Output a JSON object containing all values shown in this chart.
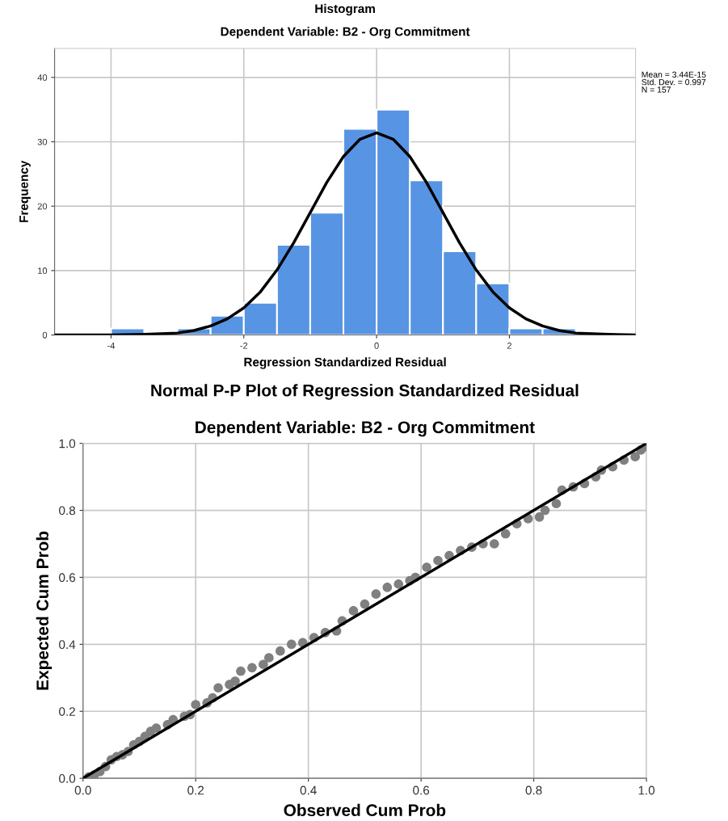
{
  "chart_data": [
    {
      "type": "histogram",
      "title": "Histogram",
      "subtitle": "Dependent Variable: B2 - Org Commitment",
      "xlabel": "Regression Standardized Residual",
      "ylabel": "Frequency",
      "bins": [
        -4,
        -3.5,
        -3,
        -2.5,
        -2,
        -1.5,
        -1,
        -0.5,
        0,
        0.5,
        1,
        1.5,
        2,
        2.5,
        3
      ],
      "values": [
        1,
        0,
        1,
        3,
        5,
        14,
        19,
        32,
        35,
        24,
        13,
        8,
        1,
        1
      ],
      "color": "#5795e4",
      "series": [
        {
          "type": "line",
          "color": "#000000",
          "x": [
            -4.85,
            -4.5,
            -4,
            -3.5,
            -3,
            -2.75,
            -2.5,
            -2.25,
            -2,
            -1.75,
            -1.5,
            -1.25,
            -1,
            -0.75,
            -0.5,
            -0.25,
            0,
            0.25,
            0.5,
            0.75,
            1,
            1.25,
            1.5,
            1.75,
            2,
            2.25,
            2.5,
            2.75,
            3,
            3.5,
            3.9
          ],
          "values": [
            0,
            0,
            0,
            0.1,
            0.3,
            0.7,
            1.4,
            2.5,
            4.2,
            6.7,
            10.1,
            14.3,
            19.0,
            23.7,
            27.7,
            30.4,
            31.4,
            30.4,
            27.7,
            23.7,
            19.0,
            14.3,
            10.1,
            6.7,
            4.2,
            2.5,
            1.4,
            0.7,
            0.3,
            0.1,
            0
          ]
        }
      ],
      "xlim": [
        -4.85,
        3.9
      ],
      "ylim": [
        0,
        44.5
      ],
      "xticks": [
        -4,
        -2,
        0,
        2
      ],
      "yticks": [
        0,
        10,
        20,
        30,
        40
      ],
      "grid": true,
      "annotations": [
        "Mean = 3.44E-15\nStd. Dev. = 0.997\nN = 157"
      ]
    },
    {
      "type": "scatter",
      "title": "Normal P-P Plot of Regression Standardized Residual",
      "subtitle": "Dependent Variable: B2 - Org Commitment",
      "xlabel": "Observed Cum Prob",
      "ylabel": "Expected Cum Prob",
      "series": [
        {
          "type": "scatter",
          "color": "#808080",
          "marker": "circle",
          "x": [
            0.01,
            0.02,
            0.03,
            0.04,
            0.05,
            0.06,
            0.07,
            0.08,
            0.09,
            0.1,
            0.11,
            0.12,
            0.13,
            0.15,
            0.16,
            0.18,
            0.19,
            0.2,
            0.22,
            0.23,
            0.24,
            0.26,
            0.27,
            0.28,
            0.3,
            0.32,
            0.33,
            0.35,
            0.37,
            0.39,
            0.41,
            0.43,
            0.45,
            0.46,
            0.48,
            0.5,
            0.52,
            0.54,
            0.56,
            0.58,
            0.59,
            0.61,
            0.63,
            0.65,
            0.67,
            0.69,
            0.71,
            0.73,
            0.75,
            0.77,
            0.79,
            0.81,
            0.82,
            0.84,
            0.85,
            0.87,
            0.89,
            0.91,
            0.92,
            0.94,
            0.96,
            0.98,
            0.99,
            1.0
          ],
          "values": [
            0.004,
            0.01,
            0.02,
            0.035,
            0.055,
            0.065,
            0.07,
            0.08,
            0.1,
            0.11,
            0.125,
            0.14,
            0.15,
            0.16,
            0.175,
            0.185,
            0.19,
            0.22,
            0.225,
            0.24,
            0.27,
            0.28,
            0.29,
            0.32,
            0.33,
            0.34,
            0.36,
            0.38,
            0.4,
            0.405,
            0.42,
            0.435,
            0.44,
            0.47,
            0.5,
            0.52,
            0.55,
            0.57,
            0.58,
            0.59,
            0.6,
            0.63,
            0.65,
            0.665,
            0.68,
            0.69,
            0.7,
            0.7,
            0.73,
            0.76,
            0.775,
            0.78,
            0.8,
            0.82,
            0.86,
            0.87,
            0.88,
            0.9,
            0.92,
            0.93,
            0.95,
            0.96,
            0.98,
            0.99
          ]
        },
        {
          "type": "line",
          "color": "#000000",
          "x": [
            0,
            1
          ],
          "values": [
            0,
            1
          ]
        }
      ],
      "xlim": [
        0,
        1
      ],
      "ylim": [
        0,
        1
      ],
      "xticks": [
        {
          "value": 0,
          "label": "0.0"
        },
        {
          "value": 0.2,
          "label": "0.2"
        },
        {
          "value": 0.4,
          "label": "0.4"
        },
        {
          "value": 0.6,
          "label": "0.6"
        },
        {
          "value": 0.8,
          "label": "0.8"
        },
        {
          "value": 1,
          "label": "1.0"
        }
      ],
      "yticks": [
        {
          "value": 0,
          "label": "0.0"
        },
        {
          "value": 0.2,
          "label": "0.2"
        },
        {
          "value": 0.4,
          "label": "0.4"
        },
        {
          "value": 0.6,
          "label": "0.6"
        },
        {
          "value": 0.8,
          "label": "0.8"
        },
        {
          "value": 1,
          "label": "1.0"
        }
      ],
      "grid": true
    }
  ]
}
